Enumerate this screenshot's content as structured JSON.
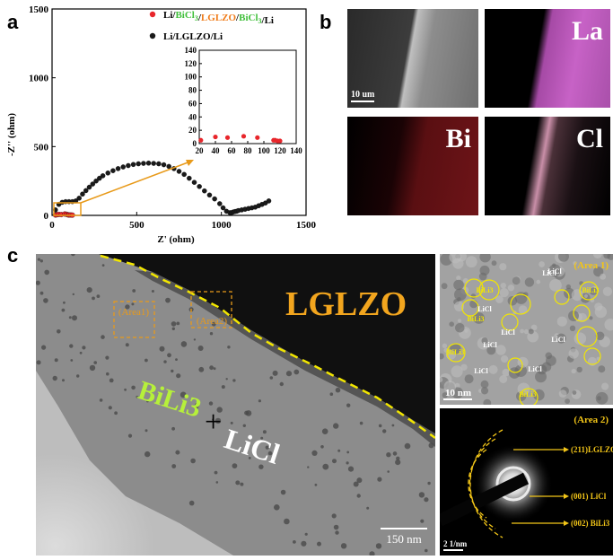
{
  "panels": {
    "a": "a",
    "b": "b",
    "c": "c"
  },
  "chart_data": {
    "type": "scatter",
    "xlabel": "Z' (ohm)",
    "ylabel": "-Z'' (ohm)",
    "xlim": [
      0,
      1500
    ],
    "ylim": [
      0,
      1500
    ],
    "xticks": [
      "0",
      "500",
      "1000",
      "1500"
    ],
    "yticks": [
      "0",
      "500",
      "1000",
      "1500"
    ],
    "legend_position": "top-right",
    "legend": [
      {
        "name": "Li/BiCl3/LGLZO/BiCl3/Li",
        "color": "#e8262b"
      },
      {
        "name": "Li/LGLZO/Li",
        "color": "#1a1a1a"
      }
    ],
    "series": [
      {
        "name": "Li/LGLZO/Li",
        "color": "#1a1a1a",
        "x": [
          20,
          40,
          60,
          80,
          100,
          120,
          140,
          160,
          180,
          200,
          220,
          240,
          260,
          280,
          300,
          330,
          360,
          390,
          420,
          450,
          480,
          510,
          540,
          570,
          600,
          630,
          660,
          690,
          720,
          750,
          780,
          810,
          840,
          870,
          900,
          930,
          960,
          990,
          1010,
          1030,
          1050,
          1060,
          1070,
          1080,
          1090,
          1100,
          1120,
          1140,
          1160,
          1180,
          1200,
          1220,
          1240,
          1260,
          1280
        ],
        "y": [
          40,
          80,
          95,
          100,
          100,
          100,
          105,
          125,
          155,
          180,
          205,
          228,
          250,
          270,
          288,
          308,
          325,
          340,
          352,
          362,
          370,
          375,
          378,
          380,
          378,
          375,
          368,
          356,
          340,
          320,
          298,
          270,
          240,
          210,
          178,
          148,
          120,
          85,
          55,
          30,
          20,
          20,
          25,
          28,
          30,
          35,
          40,
          45,
          50,
          55,
          60,
          70,
          80,
          90,
          105
        ]
      },
      {
        "name": "Li/BiCl3/LGLZO/BiCl3/Li",
        "color": "#e8262b",
        "x": [
          20,
          28,
          40,
          55,
          75,
          85,
          95,
          100,
          110,
          120
        ],
        "y": [
          3,
          5,
          7,
          6,
          10,
          8,
          4,
          3,
          3,
          2
        ]
      }
    ],
    "inset": {
      "xlim": [
        20,
        140
      ],
      "ylim": [
        0,
        140
      ],
      "xticks": [
        "20",
        "40",
        "60",
        "80",
        "100",
        "120",
        "140"
      ],
      "yticks": [
        "0",
        "20",
        "40",
        "60",
        "80",
        "100",
        "120",
        "140"
      ],
      "series": [
        {
          "name": "Li/BiCl3/LGLZO/BiCl3/Li",
          "color": "#e8262b",
          "x": [
            22,
            40,
            55,
            75,
            92,
            112,
            114,
            117,
            120
          ],
          "y": [
            5,
            10,
            9,
            11,
            9,
            5,
            5,
            4,
            4
          ]
        }
      ]
    }
  },
  "eds": {
    "sem_scale": "10 um",
    "tiles": [
      {
        "label": "",
        "color": "#9a9a9a"
      },
      {
        "label": "La",
        "color": "#d25ed0"
      },
      {
        "label": "Bi",
        "color": "#c8242a"
      },
      {
        "label": "Cl",
        "color": "#e9a9c0"
      }
    ]
  },
  "tem": {
    "big_label": "LGLZO",
    "area1": "(Area1)",
    "area2": "(Area2)",
    "phase_a": "BiLi3",
    "phase_plus": "+",
    "phase_b": "LiCl",
    "scale": "150 nm",
    "hrtem_title": "(Area 1)",
    "hrtem_scale": "10 nm",
    "hrtem_labels": [
      {
        "t": "LiCl"
      },
      {
        "t": "BiLi3"
      },
      {
        "t": "BiLi3"
      },
      {
        "t": "LiCl"
      },
      {
        "t": "BiLi3"
      },
      {
        "t": "LiCl"
      },
      {
        "t": "LiCl"
      },
      {
        "t": "LiCl"
      },
      {
        "t": "BiLi3"
      },
      {
        "t": "LiCl"
      },
      {
        "t": "LiCl"
      },
      {
        "t": "BiLi3"
      },
      {
        "t": "LiCl"
      }
    ],
    "saed_title": "(Area 2)",
    "saed_scale": "2 1/nm",
    "saed_labels": [
      "(211)LGLZO",
      "(001) LiCl",
      "(002) BiLi3"
    ]
  }
}
